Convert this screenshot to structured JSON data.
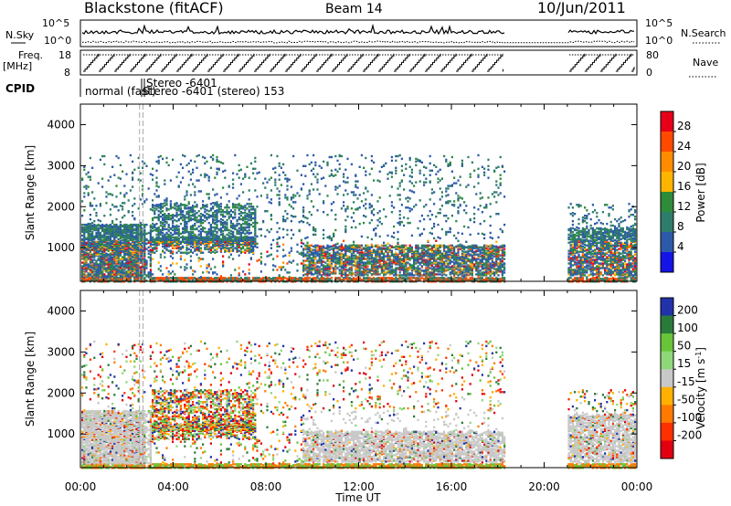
{
  "header": {
    "title": "Blackstone (fitACF)",
    "beam": "Beam 14",
    "date": "10/Jun/2011"
  },
  "top_panels": {
    "nsky_label": "N.Sky",
    "nsky_ticks": [
      "10^5",
      "10^0"
    ],
    "nsearch_label": "N.Search",
    "nsearch_ticks": [
      "10^5",
      "10^0"
    ],
    "freq_label": "Freq.",
    "freq_unit": "[MHz]",
    "freq_ticks": [
      "18",
      "8"
    ],
    "nave_label": "Nave",
    "nave_ticks": [
      "80",
      "0"
    ],
    "cpid_label": "CPID",
    "cpid_texts": [
      "Stereo -6401",
      "normal (fast)",
      "Stereo -6401 (stereo) 153"
    ]
  },
  "chart_data": [
    {
      "type": "heatmap",
      "name": "power-panel",
      "ylabel": "Slant Range [km]",
      "ylim": [
        180,
        4500
      ],
      "yticks": [
        "4000",
        "3000",
        "2000",
        "1000"
      ],
      "xticks": [
        "00:00",
        "04:00",
        "08:00",
        "12:00",
        "16:00",
        "20:00",
        "00:00"
      ],
      "xlim_hours": [
        0,
        24
      ],
      "data_gaps_hours": [
        [
          18.3,
          21.0
        ]
      ],
      "colorbar": {
        "label": "Power [dB]",
        "ticks": [
          "28",
          "24",
          "20",
          "16",
          "12",
          "8",
          "4"
        ],
        "colors": [
          "#e8001a",
          "#ff4a00",
          "#ff8c00",
          "#ffb400",
          "#2e8b3a",
          "#2e7d6a",
          "#2d5aa8",
          "#1414e6"
        ]
      }
    },
    {
      "type": "heatmap",
      "name": "velocity-panel",
      "ylabel": "Slant Range [km]",
      "ylim": [
        180,
        4500
      ],
      "yticks": [
        "4000",
        "3000",
        "2000",
        "1000"
      ],
      "xticks": [
        "00:00",
        "04:00",
        "08:00",
        "12:00",
        "16:00",
        "20:00",
        "00:00"
      ],
      "xlim_hours": [
        0,
        24
      ],
      "data_gaps_hours": [
        [
          18.3,
          21.0
        ]
      ],
      "colorbar": {
        "label": "Velocity [m s^-1]",
        "ticks": [
          "200",
          "100",
          "50",
          "15",
          "-15",
          "-50",
          "-100",
          "-200"
        ],
        "colors": [
          "#2233aa",
          "#2a7a3a",
          "#6ac43a",
          "#8fd87a",
          "#c8c8c8",
          "#ffb000",
          "#ff7a00",
          "#ff3000",
          "#e00010"
        ]
      }
    }
  ],
  "xaxis_label": "Time UT"
}
